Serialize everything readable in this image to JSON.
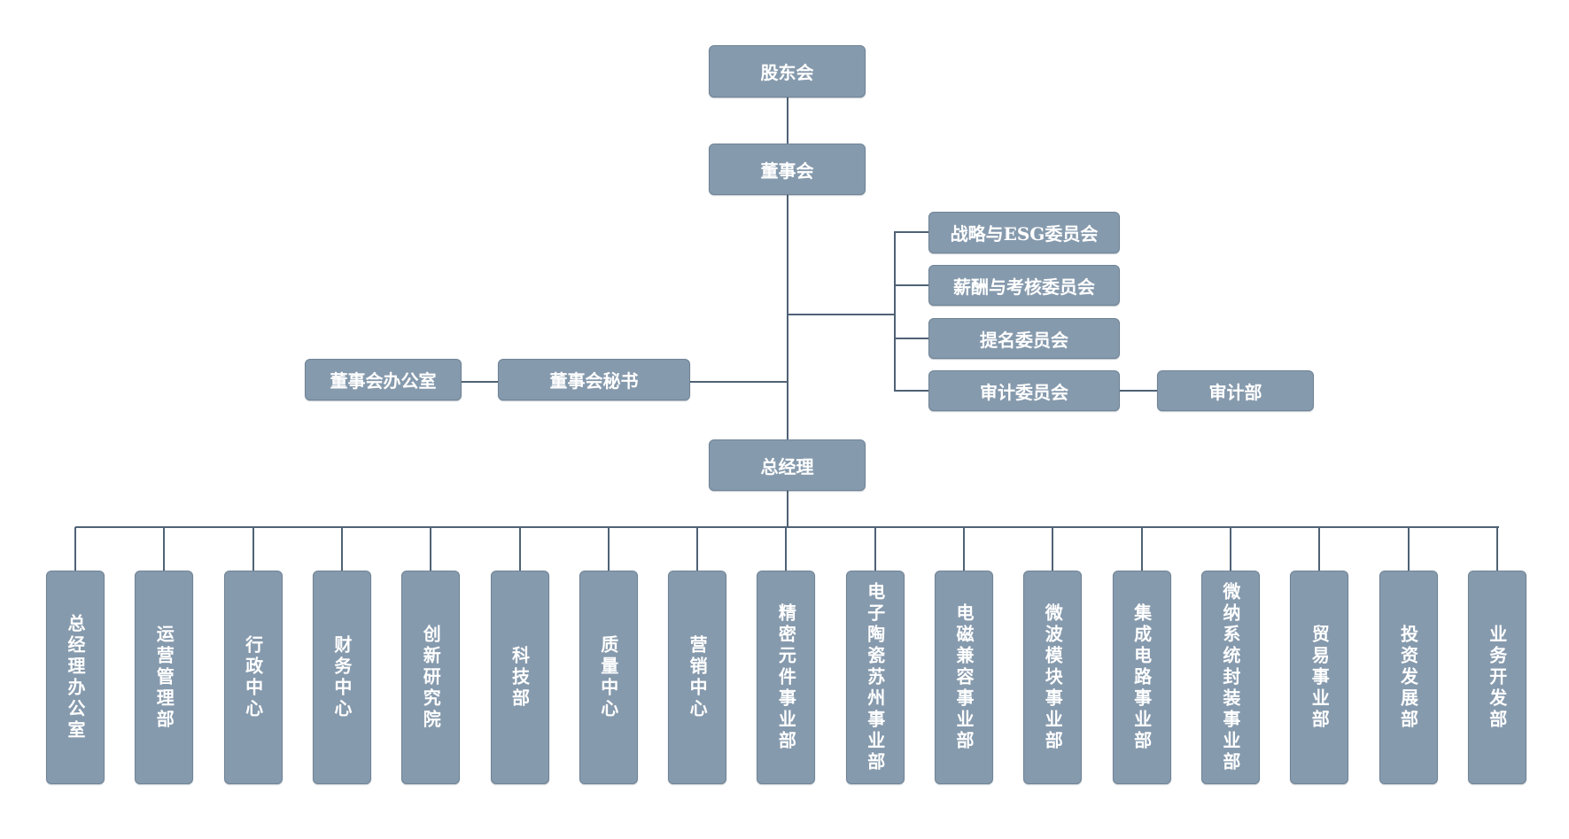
{
  "top": {
    "shareholders": "股东会",
    "board": "董事会",
    "general_manager": "总经理"
  },
  "committees": [
    "战略与ESG委员会",
    "薪酬与考核委员会",
    "提名委员会",
    "审计委员会"
  ],
  "audit_department": "审计部",
  "board_secretary": "董事会秘书",
  "board_office": "董事会办公室",
  "departments": [
    "总经理办公室",
    "运营管理部",
    "行政中心",
    "财务中心",
    "创新研究院",
    "科技部",
    "质量中心",
    "营销中心",
    "精密元件事业部",
    "电子陶瓷苏州事业部",
    "电磁兼容事业部",
    "微波模块事业部",
    "集成电路事业部",
    "微纳系统封装事业部",
    "贸易事业部",
    "投资发展部",
    "业务开发部"
  ],
  "colors": {
    "box": "#869aad",
    "line": "#4f6275",
    "text": "#ffffff"
  }
}
